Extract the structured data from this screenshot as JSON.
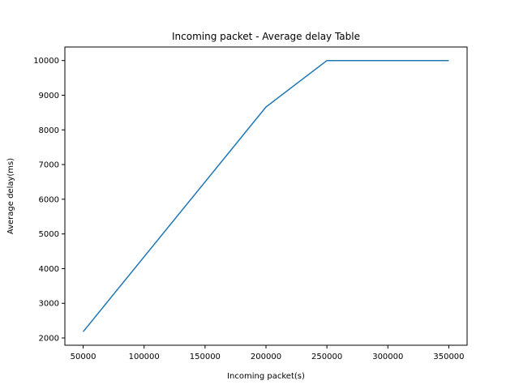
{
  "chart_data": {
    "type": "line",
    "title": "Incoming packet - Average delay Table",
    "xlabel": "Incoming packet(s)",
    "ylabel": "Average delay(ms)",
    "x": [
      50000,
      200000,
      250000,
      350000
    ],
    "series": [
      {
        "values": [
          2180,
          8660,
          10000,
          10000
        ],
        "color": "#1f77b4"
      }
    ],
    "xlim": [
      35000,
      365000
    ],
    "ylim": [
      1790,
      10390
    ],
    "xticks": [
      50000,
      100000,
      150000,
      200000,
      250000,
      300000,
      350000
    ],
    "yticks": [
      2000,
      3000,
      4000,
      5000,
      6000,
      7000,
      8000,
      9000,
      10000
    ],
    "grid": false,
    "legend": "none"
  }
}
